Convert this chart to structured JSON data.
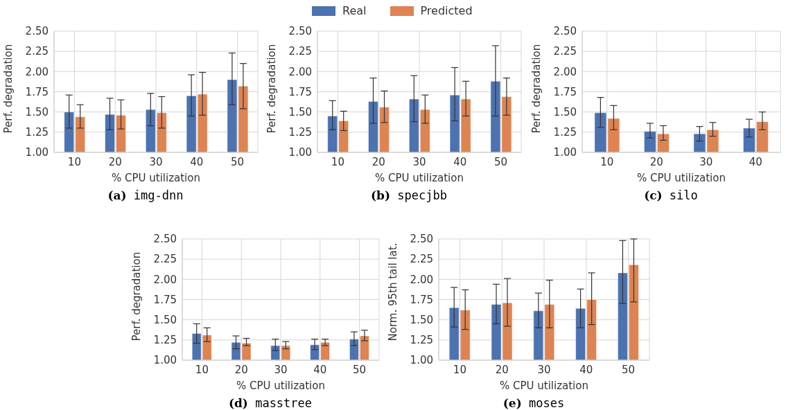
{
  "chart_data": [
    {
      "type": "bar",
      "title": "(a) img-dnn",
      "xlabel": "% CPU utilization",
      "ylabel": "Perf. degradation",
      "categories": [
        "10",
        "20",
        "30",
        "40",
        "50"
      ],
      "series": [
        {
          "name": "Real",
          "color": "#4c72b0",
          "values": [
            1.5,
            1.47,
            1.53,
            1.7,
            1.9
          ],
          "errors": [
            [
              1.3,
              1.71
            ],
            [
              1.28,
              1.67
            ],
            [
              1.33,
              1.73
            ],
            [
              1.45,
              1.96
            ],
            [
              1.59,
              2.23
            ]
          ]
        },
        {
          "name": "Predicted",
          "color": "#dd8452",
          "values": [
            1.44,
            1.46,
            1.49,
            1.72,
            1.82
          ],
          "errors": [
            [
              1.3,
              1.59
            ],
            [
              1.29,
              1.65
            ],
            [
              1.3,
              1.69
            ],
            [
              1.46,
              1.99
            ],
            [
              1.54,
              2.1
            ]
          ]
        }
      ],
      "ylim": [
        1.0,
        2.5
      ],
      "yticks": [
        {
          "value": 1.0,
          "label": "1.00"
        },
        {
          "value": 1.25,
          "label": "1.25"
        },
        {
          "value": 1.5,
          "label": "1.50"
        },
        {
          "value": 1.75,
          "label": "1.75"
        },
        {
          "value": 2.0,
          "label": "2.00"
        },
        {
          "value": 2.25,
          "label": "2.25"
        },
        {
          "value": 2.5,
          "label": "2.50"
        }
      ],
      "grid": true,
      "legend": "top"
    },
    {
      "type": "bar",
      "title": "(b) specjbb",
      "xlabel": "% CPU utilization",
      "ylabel": "Perf. degradation",
      "categories": [
        "10",
        "20",
        "30",
        "40",
        "50"
      ],
      "series": [
        {
          "color": "#4c72b0",
          "values": [
            1.45,
            1.63,
            1.66,
            1.71,
            1.88
          ],
          "errors": [
            [
              1.28,
              1.64
            ],
            [
              1.36,
              1.92
            ],
            [
              1.38,
              1.95
            ],
            [
              1.39,
              2.05
            ],
            [
              1.45,
              2.32
            ]
          ]
        },
        {
          "color": "#dd8452",
          "values": [
            1.39,
            1.56,
            1.53,
            1.66,
            1.69
          ],
          "errors": [
            [
              1.27,
              1.51
            ],
            [
              1.37,
              1.76
            ],
            [
              1.36,
              1.71
            ],
            [
              1.45,
              1.88
            ],
            [
              1.46,
              1.92
            ]
          ]
        }
      ],
      "ylim": [
        1.0,
        2.5
      ],
      "yticks": [
        {
          "value": 1.0,
          "label": "1.00"
        },
        {
          "value": 1.25,
          "label": "1.25"
        },
        {
          "value": 1.5,
          "label": "1.50"
        },
        {
          "value": 1.75,
          "label": "1.75"
        },
        {
          "value": 2.0,
          "label": "2.00"
        },
        {
          "value": 2.25,
          "label": "2.25"
        },
        {
          "value": 2.5,
          "label": "2.50"
        }
      ],
      "grid": true
    },
    {
      "type": "bar",
      "title": "(c) silo",
      "xlabel": "% CPU utilization",
      "ylabel": "Perf. degradation",
      "categories": [
        "10",
        "20",
        "30",
        "40"
      ],
      "series": [
        {
          "color": "#4c72b0",
          "values": [
            1.49,
            1.26,
            1.23,
            1.3
          ],
          "errors": [
            [
              1.31,
              1.68
            ],
            [
              1.18,
              1.36
            ],
            [
              1.14,
              1.32
            ],
            [
              1.19,
              1.41
            ]
          ]
        },
        {
          "color": "#dd8452",
          "values": [
            1.42,
            1.23,
            1.28,
            1.38
          ],
          "errors": [
            [
              1.28,
              1.58
            ],
            [
              1.15,
              1.33
            ],
            [
              1.2,
              1.37
            ],
            [
              1.28,
              1.5
            ]
          ]
        }
      ],
      "ylim": [
        1.0,
        2.5
      ],
      "yticks": [
        {
          "value": 1.0,
          "label": "1.00"
        },
        {
          "value": 1.25,
          "label": "1.25"
        },
        {
          "value": 1.5,
          "label": "1.50"
        },
        {
          "value": 1.75,
          "label": "1.75"
        },
        {
          "value": 2.0,
          "label": "2.00"
        },
        {
          "value": 2.25,
          "label": "2.25"
        },
        {
          "value": 2.5,
          "label": "2.50"
        }
      ],
      "grid": true
    },
    {
      "type": "bar",
      "title": "(d) masstree",
      "xlabel": "% CPU utilization",
      "ylabel": "Perf. degradation",
      "categories": [
        "10",
        "20",
        "30",
        "40",
        "50"
      ],
      "series": [
        {
          "color": "#4c72b0",
          "values": [
            1.33,
            1.22,
            1.18,
            1.19,
            1.26
          ],
          "errors": [
            [
              1.21,
              1.45
            ],
            [
              1.14,
              1.3
            ],
            [
              1.12,
              1.26
            ],
            [
              1.13,
              1.26
            ],
            [
              1.18,
              1.35
            ]
          ]
        },
        {
          "color": "#dd8452",
          "values": [
            1.31,
            1.21,
            1.18,
            1.22,
            1.3
          ],
          "errors": [
            [
              1.23,
              1.4
            ],
            [
              1.18,
              1.27
            ],
            [
              1.14,
              1.23
            ],
            [
              1.18,
              1.26
            ],
            [
              1.24,
              1.37
            ]
          ]
        }
      ],
      "ylim": [
        1.0,
        2.5
      ],
      "yticks": [
        {
          "value": 1.0,
          "label": "1.00"
        },
        {
          "value": 1.25,
          "label": "1.25"
        },
        {
          "value": 1.5,
          "label": "1.50"
        },
        {
          "value": 1.75,
          "label": "1.75"
        },
        {
          "value": 2.0,
          "label": "2.00"
        },
        {
          "value": 2.25,
          "label": "2.25"
        },
        {
          "value": 2.5,
          "label": "2.50"
        }
      ],
      "grid": true
    },
    {
      "type": "bar",
      "title": "(e) moses",
      "xlabel": "% CPU utilization",
      "ylabel": "Norm. 95th tail lat.",
      "categories": [
        "10",
        "20",
        "30",
        "40",
        "50"
      ],
      "series": [
        {
          "color": "#4c72b0",
          "values": [
            1.65,
            1.69,
            1.61,
            1.64,
            2.08
          ],
          "errors": [
            [
              1.41,
              1.9
            ],
            [
              1.45,
              1.94
            ],
            [
              1.4,
              1.83
            ],
            [
              1.4,
              1.88
            ],
            [
              1.7,
              2.48
            ]
          ]
        },
        {
          "color": "#dd8452",
          "values": [
            1.62,
            1.71,
            1.69,
            1.75,
            2.18
          ],
          "errors": [
            [
              1.38,
              1.87
            ],
            [
              1.42,
              2.01
            ],
            [
              1.4,
              1.99
            ],
            [
              1.44,
              2.08
            ],
            [
              1.72,
              2.5
            ]
          ]
        }
      ],
      "ylim": [
        1.0,
        2.5
      ],
      "yticks": [
        {
          "value": 1.0,
          "label": "1.00"
        },
        {
          "value": 1.25,
          "label": "1.25"
        },
        {
          "value": 1.5,
          "label": "1.50"
        },
        {
          "value": 1.75,
          "label": "1.75"
        },
        {
          "value": 2.0,
          "label": "2.00"
        },
        {
          "value": 2.25,
          "label": "2.25"
        },
        {
          "value": 2.5,
          "label": "2.50"
        }
      ],
      "grid": true
    }
  ]
}
